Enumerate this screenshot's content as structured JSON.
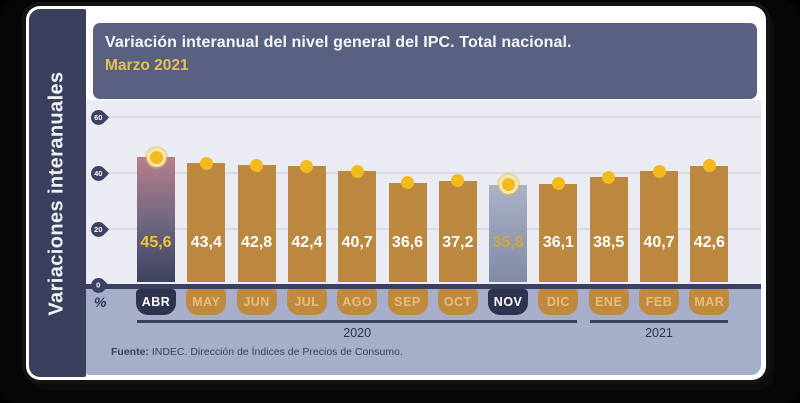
{
  "frame": {
    "sidebar_label": "Variaciones interanuales"
  },
  "header": {
    "title": "Variación interanual del nivel general del IPC. Total nacional.",
    "subtitle": "Marzo 2021"
  },
  "chart_data": {
    "type": "bar",
    "title": "Variación interanual del nivel general del IPC. Total nacional.",
    "subtitle": "Marzo 2021",
    "categories": [
      "ABR",
      "MAY",
      "JUN",
      "JUL",
      "AGO",
      "SEP",
      "OCT",
      "NOV",
      "DIC",
      "ENE",
      "FEB",
      "MAR"
    ],
    "values": [
      45.6,
      43.4,
      42.8,
      42.4,
      40.7,
      36.6,
      37.2,
      35.8,
      36.1,
      38.5,
      40.7,
      42.6
    ],
    "value_labels": [
      "45,6",
      "43,4",
      "42,8",
      "42,4",
      "40,7",
      "36,6",
      "37,2",
      "35,8",
      "36,1",
      "38,5",
      "40,7",
      "42,6"
    ],
    "highlighted_indices": [
      0,
      7
    ],
    "unit_label": "%",
    "ylim": [
      0,
      60
    ],
    "yticks": [
      0,
      20,
      40,
      60
    ],
    "grid": true,
    "legend": null,
    "year_groups": [
      {
        "label": "2020",
        "from_index": 0,
        "to_index": 8
      },
      {
        "label": "2021",
        "from_index": 9,
        "to_index": 11
      }
    ]
  },
  "source": {
    "prefix": "Fuente:",
    "text": " INDEC. Dirección de Índices de Precios de Consumo."
  },
  "colors": {
    "sidebar_bg": "#3a3f5d",
    "header_bg": "#5a6080",
    "subtitle_text": "#e5c054",
    "plot_bg": "#ebecf3",
    "gridline": "#d9dae3",
    "bottom_band_bg": "#a6aec9",
    "axis_line": "#3a4060",
    "ymarker_bg": "#3d4263",
    "bar": "#bc873e",
    "dot": "#f2ba1d",
    "dot_ring": "#f6e7bb",
    "bar_value_text": "#ffffff",
    "highlight_first_top": "#b57f8c",
    "highlight_first_mid": "#6e6580",
    "highlight_first_bottom": "#3c4060",
    "highlight_first_value_text": "#f0c33c",
    "highlight_second_top": "#abb2c6",
    "highlight_second_bottom": "#7f88a5",
    "highlight_second_value_text": "#cfa83f",
    "pill_bg": "#bf8a3e",
    "pill_text": "#e8bc7c",
    "pill_highlight_bg": "#2e3450",
    "pill_highlight_text": "#ffffff",
    "year_line": "#39415f"
  }
}
